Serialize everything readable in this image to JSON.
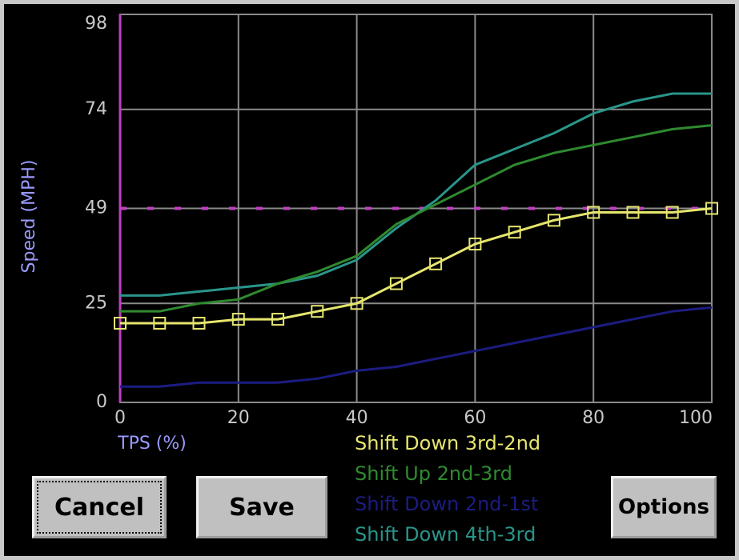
{
  "chart_data": {
    "type": "line",
    "x_label": "TPS (%)",
    "y_label": "Speed (MPH)",
    "x": [
      0,
      6.67,
      13.33,
      20,
      26.67,
      33.33,
      40,
      46.67,
      53.33,
      60,
      66.67,
      73.33,
      80,
      86.67,
      93.33,
      100
    ],
    "xlim": [
      0,
      100
    ],
    "xticks": [
      0,
      20,
      40,
      60,
      80,
      100
    ],
    "ylim": [
      0,
      98
    ],
    "yticks": [
      0,
      25,
      49,
      74,
      98
    ],
    "grid": true,
    "cursor_x": 0,
    "cursor_y": 49,
    "series": [
      {
        "name": "Shift Down 3rd-2nd",
        "color": "#e6e66e",
        "markers": true,
        "values": [
          20,
          20,
          20,
          21,
          21,
          23,
          25,
          30,
          35,
          40,
          43,
          46,
          48,
          48,
          48,
          49
        ]
      },
      {
        "name": "Shift Up 2nd-3rd",
        "color": "#2f8a2f",
        "markers": false,
        "values": [
          23,
          23,
          25,
          26,
          30,
          33,
          37,
          45,
          50,
          55,
          60,
          63,
          65,
          67,
          69,
          70
        ]
      },
      {
        "name": "Shift Down 2nd-1st",
        "color": "#1c1c82",
        "markers": false,
        "values": [
          4,
          4,
          5,
          5,
          5,
          6,
          8,
          9,
          11,
          13,
          15,
          17,
          19,
          21,
          23,
          24
        ]
      },
      {
        "name": "Shift Down 4th-3rd",
        "color": "#2a958a",
        "markers": false,
        "values": [
          27,
          27,
          28,
          29,
          30,
          32,
          36,
          44,
          51,
          60,
          64,
          68,
          73,
          76,
          78,
          78
        ]
      }
    ]
  },
  "buttons": [
    {
      "label": "Cancel"
    },
    {
      "label": "Save"
    },
    {
      "label": "Options"
    }
  ]
}
